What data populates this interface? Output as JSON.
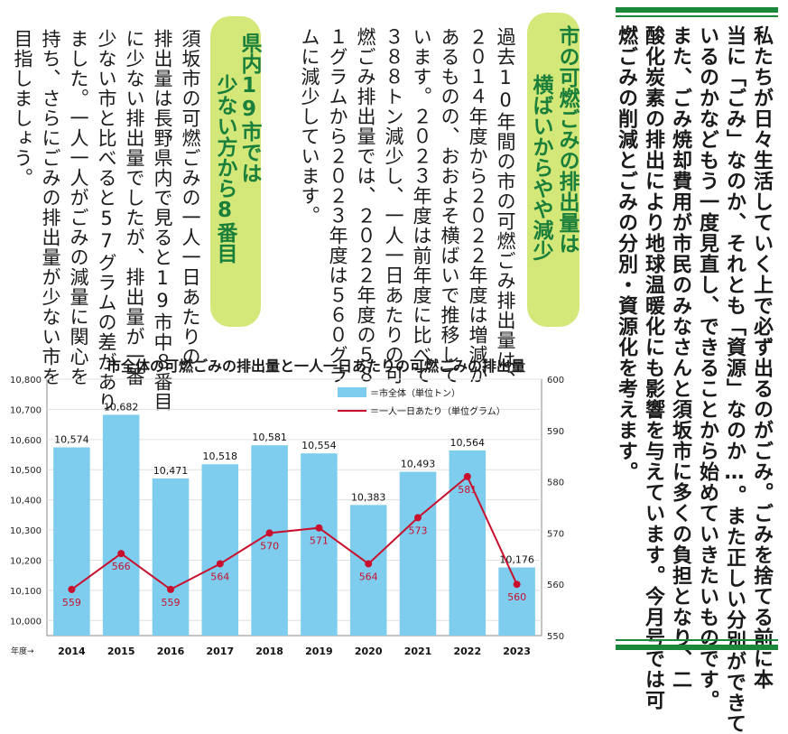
{
  "intro": {
    "text": "私たちが日々生活していく上で必ず出るのがごみ。ごみを捨てる前に本\n当に「ごみ」なのか、それとも「資源」なのか…。また正しい分別ができて\nいるのかなどもう一度見直し、できることから始めていきたいものです。\nまた、ごみ焼却費用が市民のみなさんと須坂市に多くの負担となり、二\n酸化炭素の排出により地球温暖化にも影響を与えています。今月号では可\n燃ごみの削減とごみの分別・資源化を考えます。"
  },
  "section1": {
    "heading_line1": "市の可燃ごみの排出量は",
    "heading_line2": "横ばいからやや減少",
    "body": "過去10年間の市の可燃ごみ排出量は、\n２０１４年度から２０２２年度は増減が\nあるものの、おおよそ横ばいで推移して\nいます。２０２３年度は前年度に比べて\n３８８トン減少し、一人一日あたりの可\n燃ごみ排出量では、２０２２年度の５８\n１グラムから２０２３年度は５６０グラ\nムに減少しています。"
  },
  "section2": {
    "heading_line1": "県内19市では",
    "heading_line2": "少ない方から8番目",
    "body": "須坂市の可燃ごみの一人一日あたりの\n排出量は長野県内で見ると19市中８番目\nに少ない排出量でしたが、排出量が一番\n少ない市と比べると57グラムの差があり\nました。一人一人がごみの減量に関心を\n持ち、さらにごみの排出量が少ない市を\n目指しましょう。"
  },
  "chart_data": {
    "type": "bar",
    "title": "市全体の可燃ごみの排出量と一人一日あたりの可燃ごみの排出量",
    "xlabel": "年度→",
    "categories": [
      "2014",
      "2015",
      "2016",
      "2017",
      "2018",
      "2019",
      "2020",
      "2021",
      "2022",
      "2023"
    ],
    "series": [
      {
        "name": "＝市全体（単位トン）",
        "type": "bar",
        "axis": "left",
        "color": "#7fcdee",
        "values": [
          10574,
          10682,
          10471,
          10518,
          10581,
          10554,
          10383,
          10493,
          10564,
          10176
        ]
      },
      {
        "name": "＝一人一日あたり（単位グラム）",
        "type": "line",
        "axis": "right",
        "color": "#c8102e",
        "values": [
          559,
          566,
          559,
          564,
          570,
          571,
          564,
          573,
          581,
          560
        ]
      }
    ],
    "left_ticks": [
      "10,000",
      "10,100",
      "10,200",
      "10,300",
      "10,400",
      "10,500",
      "10,600",
      "10,700",
      "10,800"
    ],
    "right_ticks": [
      "550",
      "560",
      "570",
      "580",
      "590",
      "600"
    ],
    "ylim_left": [
      9950,
      10800
    ],
    "ylim_right": [
      550,
      600
    ],
    "grid": true,
    "legend": "top-center"
  }
}
